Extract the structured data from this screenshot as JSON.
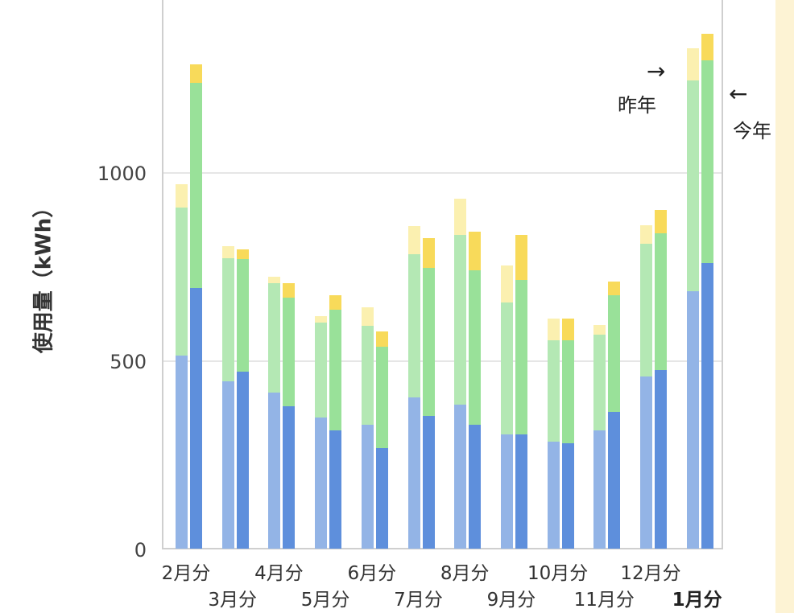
{
  "chart_data": {
    "type": "bar",
    "stacked": true,
    "grouped": true,
    "title": "",
    "xlabel": "",
    "ylabel": "使用量（kWh）",
    "ylim": [
      0,
      1400
    ],
    "yticks": [
      0,
      500,
      1000
    ],
    "grid": true,
    "categories": [
      "2月分",
      "3月分",
      "4月分",
      "5月分",
      "6月分",
      "7月分",
      "8月分",
      "9月分",
      "10月分",
      "11月分",
      "12月分",
      "1月分"
    ],
    "highlighted_category": "1月分",
    "groups": [
      {
        "name": "昨年",
        "segments": [
          {
            "name": "segment-1 (bottom, blue)",
            "color": "#93b4e6",
            "values": [
              514,
              446,
              416,
              349,
              330,
              403,
              383,
              304,
              285,
              315,
              458,
              685
            ]
          },
          {
            "name": "segment-2 (middle, green)",
            "color": "#b4e8b4",
            "values": [
              394,
              327,
              291,
              253,
              263,
              381,
              452,
              351,
              270,
              255,
              353,
              561
            ]
          },
          {
            "name": "segment-3 (top, yellow)",
            "color": "#fbf0b0",
            "values": [
              62,
              32,
              17,
              17,
              49,
              75,
              97,
              99,
              57,
              25,
              50,
              86
            ]
          }
        ],
        "totals": [
          970,
          805,
          724,
          619,
          642,
          859,
          932,
          754,
          612,
          595,
          861,
          1332
        ]
      },
      {
        "name": "今年",
        "segments": [
          {
            "name": "segment-1 (bottom, blue)",
            "color": "#5e8fdc",
            "values": [
              694,
              471,
              379,
              315,
              268,
              353,
              330,
              304,
              280,
              364,
              475,
              760
            ]
          },
          {
            "name": "segment-2 (middle, green)",
            "color": "#99e199",
            "values": [
              546,
              300,
              289,
              321,
              270,
              395,
              411,
              411,
              275,
              311,
              365,
              540
            ]
          },
          {
            "name": "segment-3 (top, yellow)",
            "color": "#f8da5a",
            "values": [
              50,
              26,
              39,
              39,
              40,
              79,
              103,
              120,
              57,
              36,
              61,
              70
            ]
          }
        ],
        "totals": [
          1290,
          797,
          707,
          675,
          578,
          827,
          844,
          835,
          612,
          711,
          901,
          1370
        ]
      }
    ],
    "annotations": [
      {
        "text": "→",
        "label": "昨年",
        "points_to": "1月分 昨年 bar"
      },
      {
        "text": "←",
        "label": "今年",
        "points_to": "1月分 今年 bar"
      }
    ]
  },
  "axis": {
    "y_ticks": [
      "0",
      "500",
      "1000"
    ],
    "y_label": "使用量（kWh）",
    "x_labels": [
      "2月分",
      "3月分",
      "4月分",
      "5月分",
      "6月分",
      "7月分",
      "8月分",
      "9月分",
      "10月分",
      "11月分",
      "12月分",
      "1月分"
    ]
  },
  "annotations": {
    "last_year_arrow": "→",
    "last_year_label": "昨年",
    "this_year_arrow": "←",
    "this_year_label": "今年"
  }
}
